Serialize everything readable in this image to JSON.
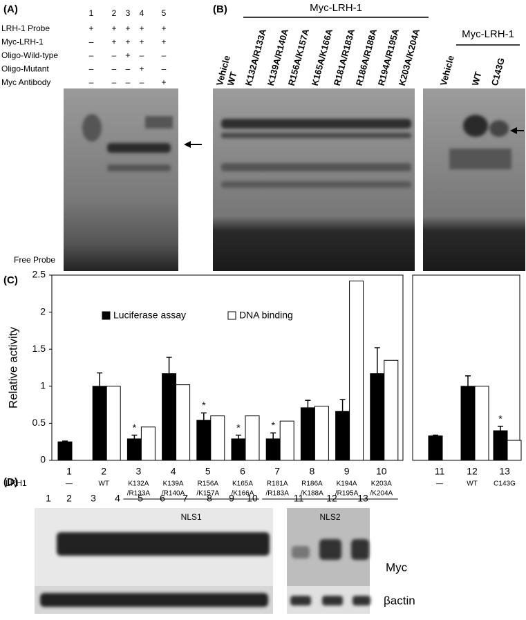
{
  "panel_a": {
    "label": "(A)",
    "lanes": [
      "1",
      "2",
      "3",
      "4",
      "5"
    ],
    "rows": [
      {
        "name": "LRH-1 Probe",
        "signs": [
          "+",
          "+",
          "+",
          "+",
          "+"
        ]
      },
      {
        "name": "Myc-LRH-1",
        "signs": [
          "–",
          "+",
          "+",
          "+",
          "+"
        ]
      },
      {
        "name": "Oligo-Wild-type",
        "signs": [
          "–",
          "–",
          "+",
          "–",
          "–"
        ]
      },
      {
        "name": "Oligo-Mutant",
        "signs": [
          "–",
          "–",
          "–",
          "+",
          "–"
        ]
      },
      {
        "name": "Myc Antibody",
        "signs": [
          "–",
          "–",
          "–",
          "–",
          "+"
        ]
      }
    ],
    "free_probe": "Free Probe"
  },
  "panel_b": {
    "label": "(B)",
    "group": "Myc-LRH-1",
    "lanes": [
      "Vehicle",
      "WT",
      "K132A/R133A",
      "K139A/R140A",
      "R156A/K157A",
      "K165A/K166A",
      "R181A/R183A",
      "R186A/R188A",
      "R194A/R195A",
      "K203A/K204A"
    ],
    "right_group": "Myc-LRH-1",
    "right_lanes": [
      "Vehicle",
      "WT",
      "C143G"
    ]
  },
  "chart_data": {
    "type": "bar",
    "label": "(C)",
    "y_label": "Relative activity",
    "categories": [
      "1",
      "2",
      "3",
      "4",
      "5",
      "6",
      "7",
      "8",
      "9",
      "10",
      "11",
      "12",
      "13"
    ],
    "category_details": [
      [
        "—"
      ],
      [
        "WT"
      ],
      [
        "K132A",
        "/R133A"
      ],
      [
        "K139A",
        "/R140A"
      ],
      [
        "R156A",
        "/K157A"
      ],
      [
        "K165A",
        "/K166A"
      ],
      [
        "R181A",
        "/R183A"
      ],
      [
        "R186A",
        "/K188A"
      ],
      [
        "K194A",
        "/R195A"
      ],
      [
        "K203A",
        "/K204A"
      ],
      [
        "—"
      ],
      [
        "WT"
      ],
      [
        "C143G"
      ]
    ],
    "row_label": "LRH1",
    "groups": [
      {
        "name": "NLS1",
        "from": 2,
        "to": 5
      },
      {
        "name": "NLS2",
        "from": 6,
        "to": 9
      }
    ],
    "series": [
      {
        "name": "Luciferase assay",
        "color": "#000000",
        "values": [
          0.25,
          1.0,
          0.29,
          1.17,
          0.54,
          0.29,
          0.29,
          0.71,
          0.66,
          1.17,
          0.33,
          1.0,
          0.4
        ],
        "errors": [
          0.01,
          0.18,
          0.05,
          0.22,
          0.1,
          0.05,
          0.08,
          0.1,
          0.16,
          0.35,
          0.01,
          0.14,
          0.06
        ]
      },
      {
        "name": "DNA binding",
        "color": "#ffffff",
        "values": [
          null,
          1.0,
          0.45,
          1.02,
          0.6,
          0.6,
          0.53,
          0.73,
          2.42,
          1.35,
          null,
          1.0,
          0.27
        ]
      }
    ],
    "significance": [
      {
        "category": "3",
        "label": "*"
      },
      {
        "category": "5",
        "label": "*"
      },
      {
        "category": "6",
        "label": "*"
      },
      {
        "category": "7",
        "label": "*"
      },
      {
        "category": "13",
        "label": "*"
      }
    ],
    "ylim": [
      0,
      2.5
    ],
    "yticks": [
      0,
      0.5,
      1,
      1.5,
      2,
      2.5
    ],
    "legend": "top",
    "grid": false
  },
  "panel_d": {
    "label": "(D)",
    "lanes": [
      "1",
      "2",
      "3",
      "4",
      "5",
      "6",
      "7",
      "8",
      "9",
      "10"
    ],
    "right_lanes": [
      "11",
      "12",
      "13"
    ],
    "rows": [
      "Myc",
      "βactin"
    ]
  }
}
